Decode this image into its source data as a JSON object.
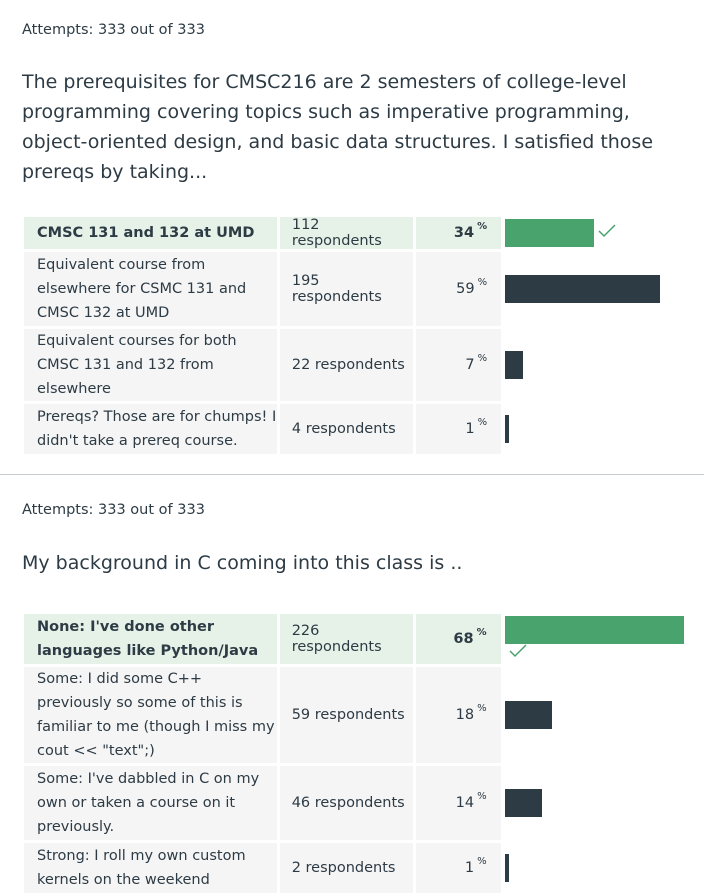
{
  "questions": [
    {
      "attempts": "Attempts: 333 out of 333",
      "text": "The prerequisites for CMSC216 are 2 semesters of college-level programming covering topics such as imperative programming, object-oriented design, and basic data structures. I satisfied those prereqs by taking...",
      "answers": [
        {
          "label": "CMSC 131 and 132 at UMD",
          "respondents": "112 respondents",
          "percent": "34",
          "value": 34,
          "correct": true
        },
        {
          "label": "Equivalent course from elsewhere for CSMC 131 and CMSC 132 at UMD",
          "respondents": "195 respondents",
          "percent": "59",
          "value": 59,
          "correct": false
        },
        {
          "label": "Equivalent courses for both CMSC 131 and 132 from elsewhere",
          "respondents": "22 respondents",
          "percent": "7",
          "value": 7,
          "correct": false
        },
        {
          "label": "Prereqs? Those are for chumps! I didn't take a prereq course.",
          "respondents": "4 respondents",
          "percent": "1",
          "value": 1,
          "correct": false
        }
      ]
    },
    {
      "attempts": "Attempts: 333 out of 333",
      "text": "My background in C coming into this class is ..",
      "answers": [
        {
          "label": "None: I've done other languages like Python/Java",
          "respondents": "226 respondents",
          "percent": "68",
          "value": 68,
          "correct": true
        },
        {
          "label": "Some: I did some C++ previously so some of this is familiar to me (though I miss my cout << \"text\";)",
          "respondents": "59 respondents",
          "percent": "18",
          "value": 18,
          "correct": false
        },
        {
          "label": "Some: I've dabbled in C on my own or taken a course on it previously.",
          "respondents": "46 respondents",
          "percent": "14",
          "value": 14,
          "correct": false
        },
        {
          "label": "Strong: I roll my own custom kernels on the weekend",
          "respondents": "2 respondents",
          "percent": "1",
          "value": 1,
          "correct": false
        }
      ]
    }
  ],
  "percent_symbol": "%",
  "colors": {
    "correct_bar": "#49a36c",
    "bar": "#2d3b45",
    "correct_bg": "#e6f1e8",
    "cell_bg": "#f5f5f5",
    "check": "#49a36c"
  }
}
